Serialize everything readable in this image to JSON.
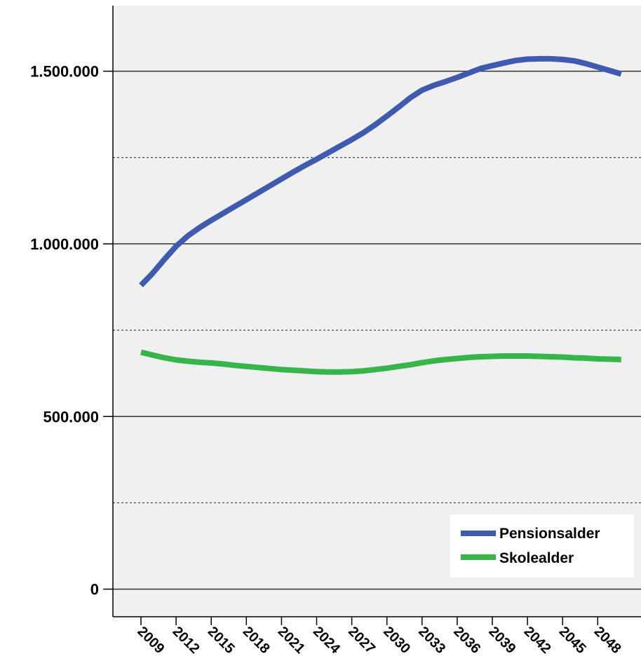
{
  "chart_data": {
    "type": "line",
    "title": "",
    "xlabel": "",
    "ylabel": "",
    "ylim": [
      -80000,
      1690000
    ],
    "grid": {
      "major_solid": true,
      "minor_dashed": true
    },
    "legend_position": "bottom-right",
    "x_tick_labels": [
      "2009",
      "2012",
      "2015",
      "2018",
      "2021",
      "2024",
      "2027",
      "2030",
      "2033",
      "2036",
      "2039",
      "2042",
      "2045",
      "2048"
    ],
    "y_ticks": [
      {
        "value": 0,
        "label": "0"
      },
      {
        "value": 500000,
        "label": "500.000"
      },
      {
        "value": 1000000,
        "label": "1.000.000"
      },
      {
        "value": 1500000,
        "label": "1.500.000"
      }
    ],
    "y_minor_ticks": [
      250000,
      750000,
      1250000
    ],
    "x": [
      2009,
      2010,
      2011,
      2012,
      2013,
      2014,
      2015,
      2016,
      2017,
      2018,
      2019,
      2020,
      2021,
      2022,
      2023,
      2024,
      2025,
      2026,
      2027,
      2028,
      2029,
      2030,
      2031,
      2032,
      2033,
      2034,
      2035,
      2036,
      2037,
      2038,
      2039,
      2040,
      2041,
      2042,
      2043,
      2044,
      2045,
      2046,
      2047,
      2048,
      2049,
      2050
    ],
    "series": [
      {
        "name": "Pensionsalder",
        "color": "#3f5bb0",
        "values": [
          880000,
          915000,
          955000,
          993000,
          1023000,
          1047000,
          1068000,
          1088000,
          1108000,
          1128000,
          1148000,
          1168000,
          1188000,
          1208000,
          1227000,
          1245000,
          1264000,
          1283000,
          1302000,
          1322000,
          1345000,
          1370000,
          1396000,
          1423000,
          1445000,
          1459000,
          1470000,
          1482000,
          1495000,
          1508000,
          1516000,
          1524000,
          1531000,
          1535000,
          1536000,
          1536000,
          1534000,
          1530000,
          1522000,
          1512000,
          1502000,
          1492000
        ]
      },
      {
        "name": "Skolealder",
        "color": "#36b64a",
        "values": [
          686000,
          678000,
          670000,
          664000,
          660000,
          657000,
          655000,
          652000,
          648000,
          645000,
          642000,
          639000,
          636000,
          634000,
          632000,
          630000,
          629000,
          629000,
          630000,
          632000,
          636000,
          640000,
          645000,
          650000,
          656000,
          661000,
          665000,
          668000,
          671000,
          673000,
          674000,
          675000,
          675000,
          675000,
          674000,
          673000,
          672000,
          670000,
          669000,
          667000,
          666000,
          665000
        ]
      }
    ]
  }
}
